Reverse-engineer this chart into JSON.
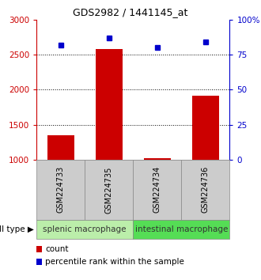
{
  "title": "GDS2982 / 1441145_at",
  "samples": [
    "GSM224733",
    "GSM224735",
    "GSM224734",
    "GSM224736"
  ],
  "bar_values": [
    1350,
    2580,
    1015,
    1910
  ],
  "percentile_values": [
    82,
    87,
    80,
    84
  ],
  "left_ylim": [
    1000,
    3000
  ],
  "right_ylim": [
    0,
    100
  ],
  "left_yticks": [
    1000,
    1500,
    2000,
    2500,
    3000
  ],
  "right_yticks": [
    0,
    25,
    50,
    75,
    100
  ],
  "right_yticklabels": [
    "0",
    "25",
    "50",
    "75",
    "100%"
  ],
  "bar_color": "#cc0000",
  "marker_color": "#0000cc",
  "cell_type_groups": [
    {
      "label": "splenic macrophage",
      "indices": [
        0,
        1
      ],
      "color": "#bbeeaa"
    },
    {
      "label": "intestinal macrophage",
      "indices": [
        2,
        3
      ],
      "color": "#55dd55"
    }
  ],
  "cell_type_label": "cell type",
  "sample_box_color": "#cccccc",
  "background": "#ffffff",
  "title_fontsize": 9,
  "tick_fontsize": 7.5,
  "label_fontsize": 7,
  "cell_type_fontsize": 7.5
}
